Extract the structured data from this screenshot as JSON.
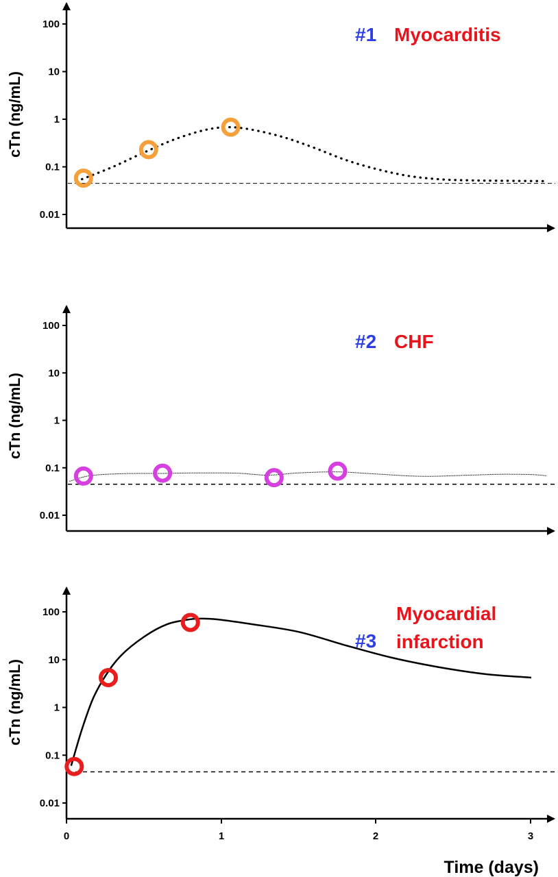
{
  "chart_data": [
    {
      "type": "line",
      "number_label": "#1",
      "title_lines": [
        "Myocarditis"
      ],
      "ylabel": "cTn (ng/mL)",
      "y_scale": "log",
      "y_ticks": [
        "100",
        "10",
        "1",
        "0.1",
        "0.01"
      ],
      "ylim": [
        0.005,
        400
      ],
      "xlim": [
        0,
        3.15
      ],
      "threshold": 0.045,
      "colors": {
        "number": "#2d3de8",
        "title": "#e8141b",
        "marker": "#f5a03a"
      },
      "line_style": "dotted",
      "curve": {
        "x": [
          0.1,
          0.3,
          0.5,
          0.7,
          0.9,
          1.05,
          1.2,
          1.4,
          1.6,
          1.8,
          2.0,
          2.2,
          2.4,
          2.6,
          2.8,
          3.1
        ],
        "y": [
          0.055,
          0.1,
          0.2,
          0.38,
          0.6,
          0.68,
          0.6,
          0.42,
          0.25,
          0.14,
          0.09,
          0.065,
          0.055,
          0.052,
          0.051,
          0.05
        ]
      },
      "points": {
        "x": [
          0.11,
          0.53,
          1.06
        ],
        "y": [
          0.058,
          0.23,
          0.68
        ]
      }
    },
    {
      "type": "line",
      "number_label": "#2",
      "title_lines": [
        "CHF"
      ],
      "ylabel": "cTn (ng/mL)",
      "y_scale": "log",
      "y_ticks": [
        "100",
        "10",
        "1",
        "0.1",
        "0.01"
      ],
      "ylim": [
        0.005,
        400
      ],
      "xlim": [
        0,
        3.15
      ],
      "threshold": 0.045,
      "colors": {
        "number": "#2d3de8",
        "title": "#e8141b",
        "marker": "#d63fe0"
      },
      "line_style": "thin",
      "curve": {
        "x": [
          0.02,
          0.15,
          0.35,
          0.6,
          0.85,
          1.1,
          1.3,
          1.5,
          1.75,
          2.0,
          2.3,
          2.6,
          2.8,
          3.0,
          3.1
        ],
        "y": [
          0.052,
          0.068,
          0.075,
          0.076,
          0.078,
          0.077,
          0.07,
          0.078,
          0.082,
          0.074,
          0.066,
          0.07,
          0.073,
          0.072,
          0.068
        ]
      },
      "points": {
        "x": [
          0.11,
          0.62,
          1.34,
          1.75
        ],
        "y": [
          0.067,
          0.077,
          0.062,
          0.085
        ]
      }
    },
    {
      "type": "line",
      "number_label": "#3",
      "title_lines": [
        "Myocardial",
        "infarction"
      ],
      "ylabel": "cTn (ng/mL)",
      "xlabel": "Time (days)",
      "y_scale": "log",
      "y_ticks": [
        "100",
        "10",
        "1",
        "0.1",
        "0.01"
      ],
      "x_ticks": [
        "0",
        "1",
        "2",
        "3"
      ],
      "ylim": [
        0.005,
        400
      ],
      "xlim": [
        0,
        3.15
      ],
      "threshold": 0.045,
      "colors": {
        "number": "#2d3de8",
        "title": "#e8141b",
        "marker": "#e81e1e"
      },
      "line_style": "solid",
      "curve": {
        "x": [
          0.03,
          0.1,
          0.17,
          0.25,
          0.35,
          0.5,
          0.65,
          0.8,
          0.9,
          1.0,
          1.2,
          1.5,
          1.8,
          2.1,
          2.4,
          2.7,
          3.0
        ],
        "y": [
          0.06,
          0.35,
          1.5,
          4.5,
          12,
          30,
          55,
          70,
          72,
          68,
          55,
          38,
          20,
          11,
          7,
          5,
          4.2
        ]
      },
      "points": {
        "x": [
          0.05,
          0.27,
          0.8
        ],
        "y": [
          0.058,
          4.2,
          60
        ]
      }
    }
  ]
}
